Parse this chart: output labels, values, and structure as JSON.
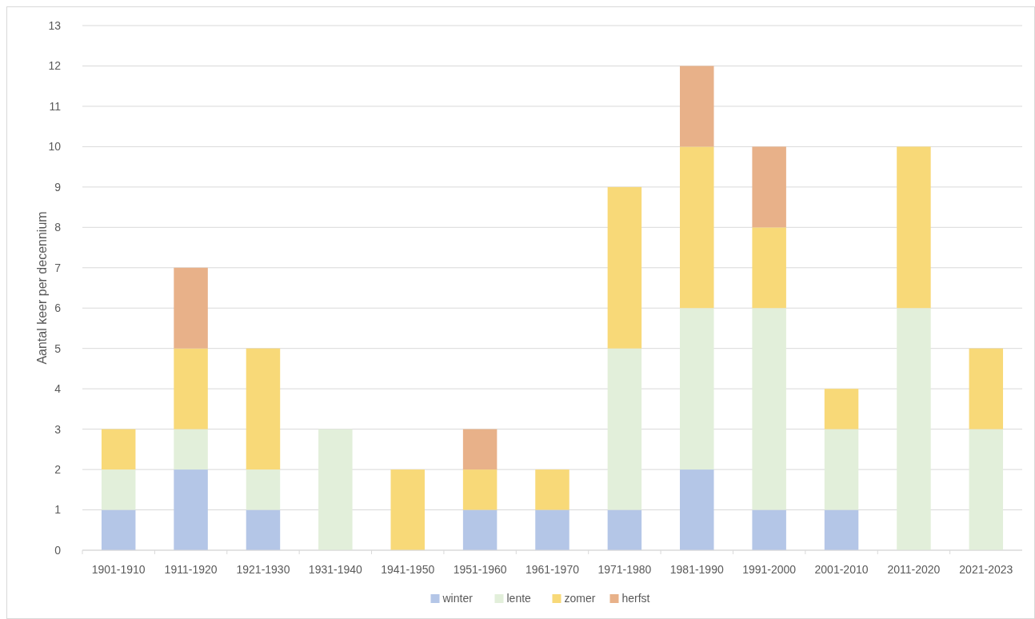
{
  "chart_data": {
    "type": "bar",
    "stacked": true,
    "ylabel": "Aantal keer per decennium",
    "categories": [
      "1901-1910",
      "1911-1920",
      "1921-1930",
      "1931-1940",
      "1941-1950",
      "1951-1960",
      "1961-1970",
      "1971-1980",
      "1981-1990",
      "1991-2000",
      "2001-2010",
      "2011-2020",
      "2021-2023"
    ],
    "series": [
      {
        "name": "winter",
        "color": "#b4c6e7",
        "values": [
          1,
          2,
          1,
          0,
          0,
          1,
          1,
          1,
          2,
          1,
          1,
          0,
          0
        ]
      },
      {
        "name": "lente",
        "color": "#e2efda",
        "values": [
          1,
          1,
          1,
          3,
          0,
          0,
          0,
          4,
          4,
          5,
          2,
          6,
          3
        ]
      },
      {
        "name": "zomer",
        "color": "#f8d978",
        "values": [
          1,
          2,
          3,
          0,
          2,
          1,
          1,
          4,
          4,
          2,
          1,
          4,
          2
        ]
      },
      {
        "name": "herfst",
        "color": "#e8b189",
        "values": [
          0,
          2,
          0,
          0,
          0,
          1,
          0,
          0,
          2,
          2,
          0,
          0,
          0
        ]
      }
    ],
    "ylim": [
      0,
      13
    ],
    "yticks": [
      0,
      1,
      2,
      3,
      4,
      5,
      6,
      7,
      8,
      9,
      10,
      11,
      12,
      13
    ],
    "grid": "y",
    "legend": "bottom"
  }
}
